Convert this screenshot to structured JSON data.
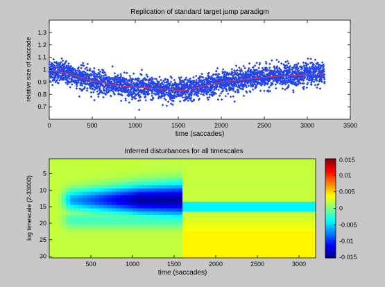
{
  "chart_data": [
    {
      "type": "scatter",
      "title": "Replication of standard target jump paradigm",
      "xlabel": "time (saccades)",
      "ylabel": "relative size of saccade",
      "xlim": [
        0,
        3500
      ],
      "ylim": [
        0.6,
        1.4
      ],
      "x_ticks": [
        0,
        500,
        1000,
        1500,
        2000,
        2500,
        3000,
        3500
      ],
      "y_ticks": [
        0.7,
        0.8,
        0.9,
        1,
        1.1,
        1.2,
        1.3
      ],
      "grid": false,
      "colors": {
        "points": "#2446e8",
        "fit": "#ff3030"
      },
      "n_points": 3200,
      "points_summary": {
        "x_range": [
          0,
          3200
        ],
        "mean_profile": {
          "x": [
            0,
            200,
            500,
            800,
            1100,
            1300,
            1500,
            1600,
            2000,
            2500,
            3000,
            3200
          ],
          "y": [
            1.0,
            0.97,
            0.91,
            0.87,
            0.855,
            0.845,
            0.83,
            0.835,
            0.9,
            0.94,
            0.96,
            0.965
          ]
        },
        "spread_sd": 0.045
      },
      "series": [
        {
          "type": "line",
          "x": [
            0,
            200,
            500,
            800,
            1100,
            1300,
            1500,
            1600,
            2000,
            2500,
            3000,
            3200
          ],
          "y": [
            1.0,
            0.97,
            0.91,
            0.87,
            0.855,
            0.845,
            0.83,
            0.835,
            0.9,
            0.94,
            0.96,
            0.965
          ]
        }
      ]
    },
    {
      "type": "heatmap",
      "title": "Inferred disturbances for all timescales",
      "xlabel": "time (saccades)",
      "ylabel": "log timescale (2-33000)",
      "xlim": [
        0,
        3200
      ],
      "ylim": [
        1,
        30
      ],
      "x_ticks": [
        500,
        1000,
        1500,
        2000,
        2500,
        3000
      ],
      "y_ticks": [
        5,
        10,
        15,
        20,
        25,
        30
      ],
      "colorbar": {
        "range": [
          -0.015,
          0.015
        ],
        "ticks": [
          "0.015",
          "0.01",
          "0.005",
          "0",
          "-0.005",
          "-0.01",
          "-0.015"
        ],
        "colormap": "jet"
      },
      "structure": {
        "background_value": 0.002,
        "negative_band": {
          "center_row": 13,
          "x_range": [
            100,
            1600
          ],
          "min_value": -0.014
        },
        "positive_region": {
          "rows": [
            17,
            30
          ],
          "x_range": [
            1600,
            3200
          ],
          "value": 0.002
        },
        "upper_rows_negative": {
          "rows": [
            14,
            16
          ],
          "x_range": [
            1600,
            3200
          ],
          "value": -0.004
        }
      }
    }
  ]
}
